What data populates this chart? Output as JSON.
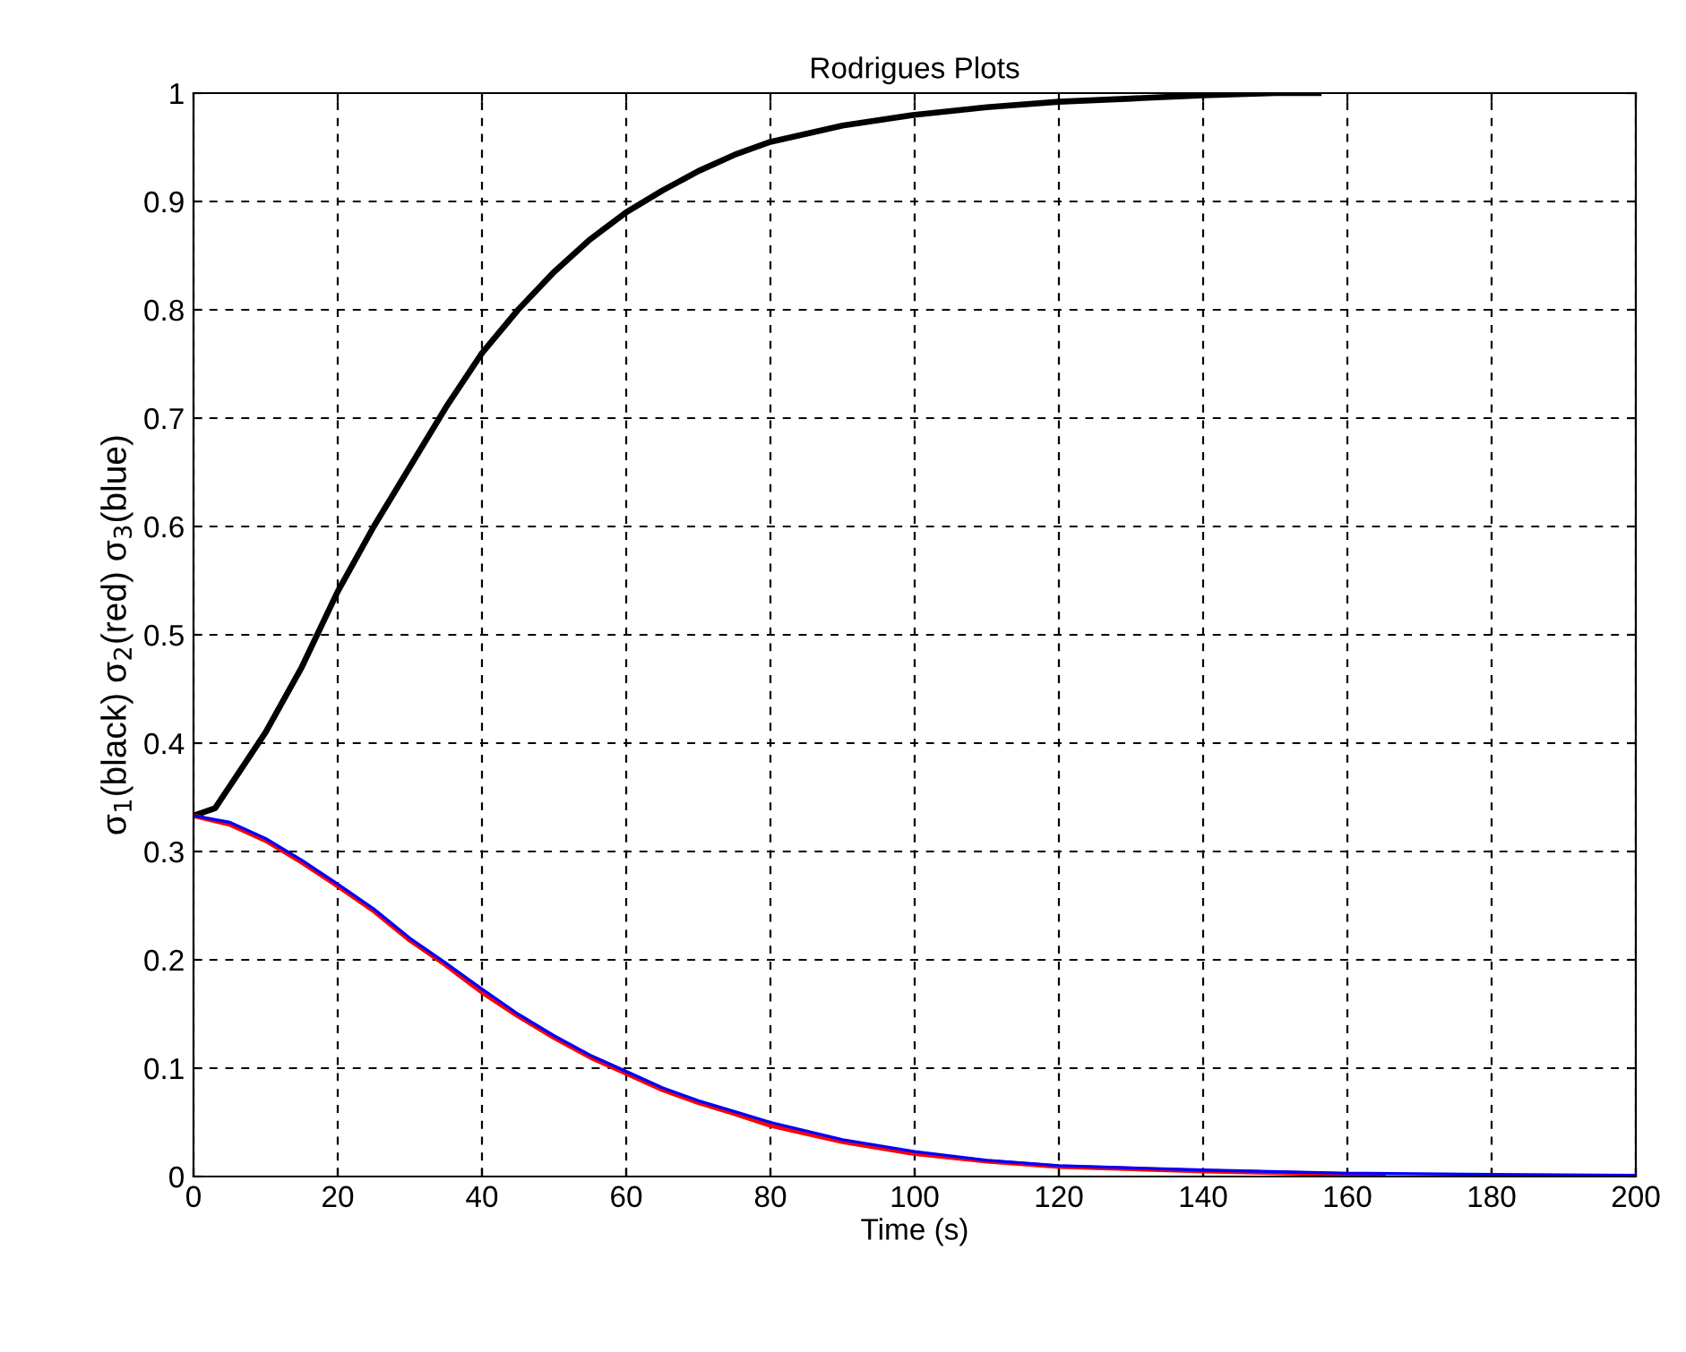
{
  "chart_data": {
    "type": "line",
    "title": "Rodrigues Plots",
    "xlabel": "Time (s)",
    "ylabel": "σ$_{1}$(black) σ$_{2}$(red) σ$_{3}$(blue)",
    "xlim": [
      0,
      200
    ],
    "ylim": [
      0,
      1
    ],
    "xticks": [
      0,
      20,
      40,
      60,
      80,
      100,
      120,
      140,
      160,
      180,
      200
    ],
    "yticks": [
      0,
      0.1,
      0.2,
      0.3,
      0.4,
      0.5,
      0.6,
      0.7,
      0.8,
      0.9,
      1
    ],
    "grid": true,
    "line_style": "solid",
    "marker": "none",
    "series": [
      {
        "color": "#000000",
        "x": [
          0,
          3,
          6,
          10,
          15,
          20,
          25,
          30,
          35,
          40,
          45,
          50,
          55,
          60,
          65,
          70,
          75,
          80,
          90,
          100,
          110,
          120,
          130,
          140,
          150,
          156
        ],
        "values": [
          0.333,
          0.34,
          0.37,
          0.41,
          0.47,
          0.54,
          0.6,
          0.655,
          0.71,
          0.76,
          0.8,
          0.835,
          0.865,
          0.89,
          0.91,
          0.928,
          0.943,
          0.955,
          0.97,
          0.98,
          0.987,
          0.992,
          0.995,
          0.998,
          1.0,
          1.0
        ]
      },
      {
        "color": "#ff0000",
        "x": [
          0,
          5,
          10,
          15,
          20,
          25,
          30,
          35,
          40,
          45,
          50,
          55,
          60,
          65,
          70,
          75,
          80,
          90,
          100,
          110,
          120,
          140,
          160,
          165
        ],
        "values": [
          0.333,
          0.325,
          0.31,
          0.29,
          0.268,
          0.245,
          0.218,
          0.195,
          0.17,
          0.148,
          0.128,
          0.11,
          0.095,
          0.08,
          0.068,
          0.058,
          0.047,
          0.032,
          0.021,
          0.014,
          0.009,
          0.005,
          0.002,
          0.001
        ]
      },
      {
        "color": "#0000ff",
        "x": [
          0,
          5,
          10,
          15,
          20,
          25,
          30,
          35,
          40,
          45,
          50,
          55,
          60,
          65,
          70,
          75,
          80,
          90,
          100,
          110,
          120,
          140,
          160,
          180,
          200
        ],
        "values": [
          0.333,
          0.327,
          0.312,
          0.292,
          0.27,
          0.247,
          0.22,
          0.197,
          0.173,
          0.15,
          0.13,
          0.112,
          0.097,
          0.082,
          0.07,
          0.06,
          0.05,
          0.034,
          0.023,
          0.015,
          0.01,
          0.006,
          0.003,
          0.002,
          0.001
        ]
      }
    ]
  }
}
